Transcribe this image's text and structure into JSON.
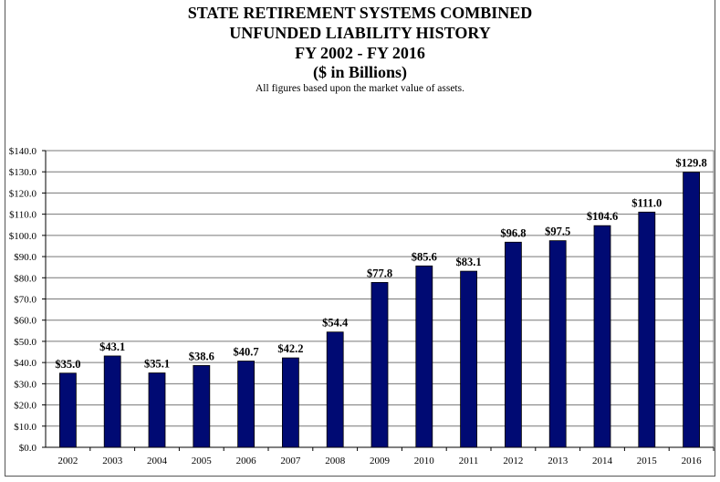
{
  "chart_data": {
    "type": "bar",
    "title": "STATE RETIREMENT SYSTEMS COMBINED",
    "title_line2": "UNFUNDED LIABILITY HISTORY",
    "title_line3": "FY 2002 - FY 2016",
    "title_line4": "($ in Billions)",
    "subtitle": "All figures based upon the market value of assets.",
    "xlabel": "",
    "ylabel": "",
    "ylim": [
      0,
      140
    ],
    "grid": true,
    "yticks": [
      0,
      10,
      20,
      30,
      40,
      50,
      60,
      70,
      80,
      90,
      100,
      110,
      120,
      130,
      140
    ],
    "ytick_labels": [
      "$0.0",
      "$10.0",
      "$20.0",
      "$30.0",
      "$40.0",
      "$50.0",
      "$60.0",
      "$70.0",
      "$80.0",
      "$90.0",
      "$100.0",
      "$110.0",
      "$120.0",
      "$130.0",
      "$140.0"
    ],
    "categories": [
      "2002",
      "2003",
      "2004",
      "2005",
      "2006",
      "2007",
      "2008",
      "2009",
      "2010",
      "2011",
      "2012",
      "2013",
      "2014",
      "2015",
      "2016"
    ],
    "values": [
      35.0,
      43.1,
      35.1,
      38.6,
      40.7,
      42.2,
      54.4,
      77.8,
      85.6,
      83.1,
      96.8,
      97.5,
      104.6,
      111.0,
      129.8
    ],
    "data_labels": [
      "$35.0",
      "$43.1",
      "$35.1",
      "$38.6",
      "$40.7",
      "$42.2",
      "$54.4",
      "$77.8",
      "$85.6",
      "$83.1",
      "$96.8",
      "$97.5",
      "$104.6",
      "$111.0",
      "$129.8"
    ],
    "bar_color": "#000a73"
  }
}
